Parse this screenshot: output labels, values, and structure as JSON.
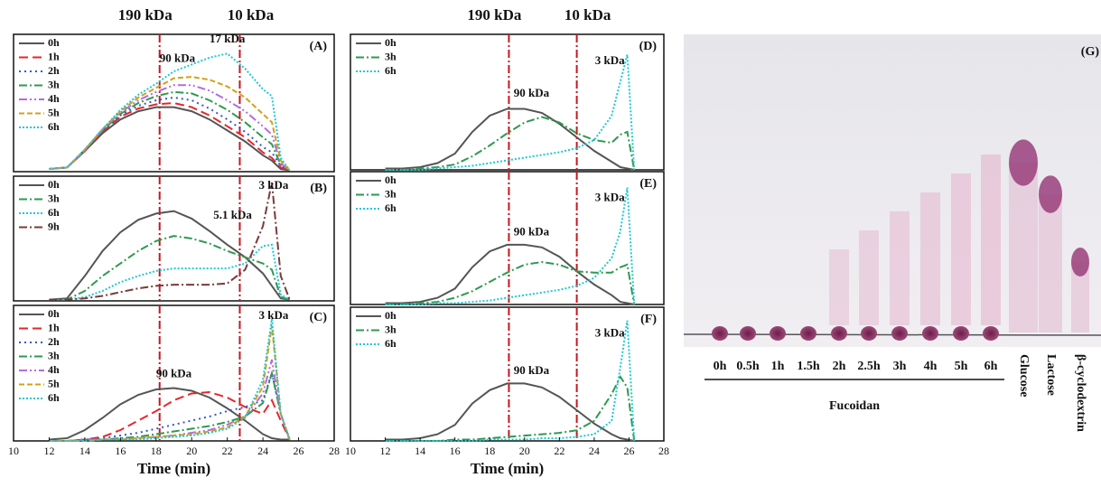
{
  "chart_data": [
    {
      "type": "line",
      "panel_label": "(A)",
      "xlim": [
        10,
        28
      ],
      "ylim": [
        0,
        100
      ],
      "vlines": [
        {
          "value": 18.2,
          "label": "190 kDa"
        },
        {
          "value": 22.7,
          "label": "10 kDa"
        }
      ],
      "annotations": [
        {
          "text": "90 kDa",
          "x": 19.2,
          "y": 82
        },
        {
          "text": "17 kDa",
          "x": 22,
          "y": 96
        }
      ],
      "x": [
        12,
        13,
        14,
        15,
        16,
        17,
        18,
        19,
        20,
        21,
        22,
        23,
        24,
        24.5,
        25,
        25.5
      ],
      "series": [
        {
          "name": "0h",
          "color": "#555555",
          "dash": "",
          "values": [
            2,
            3,
            15,
            28,
            38,
            44,
            47,
            47,
            44,
            38,
            30,
            22,
            12,
            8,
            2,
            1
          ]
        },
        {
          "name": "1h",
          "color": "#e8262b",
          "dash": "10 5",
          "values": [
            2,
            3,
            15,
            29,
            40,
            46,
            49,
            50,
            47,
            41,
            33,
            25,
            14,
            10,
            3,
            1
          ]
        },
        {
          "name": "2h",
          "color": "#3558c8",
          "dash": "2 4",
          "values": [
            2,
            3,
            16,
            30,
            41,
            48,
            52,
            54,
            52,
            46,
            38,
            29,
            18,
            14,
            4,
            1
          ]
        },
        {
          "name": "3h",
          "color": "#2e9a50",
          "dash": "9 3 2 3",
          "values": [
            2,
            3,
            16,
            30,
            42,
            50,
            55,
            58,
            57,
            52,
            45,
            36,
            25,
            20,
            5,
            1
          ]
        },
        {
          "name": "4h",
          "color": "#b66ae0",
          "dash": "9 3 2 3 2 3",
          "values": [
            2,
            3,
            16,
            31,
            43,
            52,
            58,
            63,
            63,
            59,
            52,
            44,
            33,
            27,
            6,
            1
          ]
        },
        {
          "name": "5h",
          "color": "#d4a017",
          "dash": "6 3",
          "values": [
            2,
            3,
            16,
            31,
            44,
            54,
            61,
            68,
            69,
            67,
            62,
            54,
            42,
            36,
            8,
            1
          ]
        },
        {
          "name": "6h",
          "color": "#1fc7d4",
          "dash": "2 2",
          "values": [
            2,
            3,
            16,
            31,
            45,
            56,
            64,
            73,
            78,
            83,
            86,
            75,
            60,
            55,
            10,
            1
          ]
        }
      ]
    },
    {
      "type": "line",
      "panel_label": "(B)",
      "xlim": [
        10,
        28
      ],
      "ylim": [
        0,
        100
      ],
      "vlines": [
        18.2,
        22.7
      ],
      "annotations": [
        {
          "text": "5.1 kDa",
          "x": 22.3,
          "y": 68
        },
        {
          "text": "3 kDa",
          "x": 24.6,
          "y": 92
        }
      ],
      "x": [
        12,
        13,
        14,
        15,
        16,
        17,
        18,
        19,
        20,
        21,
        22,
        23,
        24,
        24.5,
        25,
        25.5
      ],
      "series": [
        {
          "name": "0h",
          "color": "#555555",
          "dash": "",
          "values": [
            1,
            2,
            20,
            40,
            55,
            65,
            70,
            72,
            66,
            56,
            45,
            35,
            22,
            12,
            2,
            1
          ]
        },
        {
          "name": "3h",
          "color": "#2e9a50",
          "dash": "9 3 2 3",
          "values": [
            1,
            1,
            8,
            20,
            30,
            40,
            48,
            52,
            50,
            46,
            40,
            35,
            30,
            25,
            3,
            1
          ]
        },
        {
          "name": "6h",
          "color": "#1fc7d4",
          "dash": "2 2",
          "values": [
            1,
            1,
            3,
            8,
            15,
            20,
            24,
            26,
            26,
            26,
            26,
            30,
            44,
            45,
            5,
            1
          ]
        },
        {
          "name": "9h",
          "color": "#7a3a3a",
          "dash": "9 3 2 3",
          "values": [
            1,
            1,
            2,
            4,
            7,
            10,
            12,
            13,
            13,
            13,
            14,
            25,
            60,
            95,
            20,
            1
          ]
        }
      ]
    },
    {
      "type": "line",
      "panel_label": "(C)",
      "xlim": [
        10,
        28
      ],
      "ylim": [
        0,
        100
      ],
      "xticks": [
        10,
        12,
        14,
        16,
        18,
        20,
        22,
        24,
        26,
        28
      ],
      "xlabel": "Time (min)",
      "vlines": [
        18.2,
        22.7
      ],
      "annotations": [
        {
          "text": "90 kDa",
          "x": 19,
          "y": 49
        },
        {
          "text": "3 kDa",
          "x": 24.6,
          "y": 92
        }
      ],
      "x": [
        12,
        13,
        14,
        15,
        16,
        17,
        18,
        19,
        20,
        21,
        22,
        23,
        24,
        24.5,
        25,
        25.5
      ],
      "series": [
        {
          "name": "0h",
          "color": "#555555",
          "dash": "",
          "values": [
            1,
            2,
            8,
            17,
            27,
            34,
            38,
            39,
            37,
            32,
            24,
            15,
            5,
            2,
            1,
            1
          ]
        },
        {
          "name": "1h",
          "color": "#e8262b",
          "dash": "10 5",
          "values": [
            0,
            0,
            1,
            3,
            8,
            15,
            22,
            30,
            35,
            36,
            32,
            25,
            20,
            30,
            15,
            1
          ]
        },
        {
          "name": "2h",
          "color": "#3558c8",
          "dash": "2 4",
          "values": [
            0,
            0,
            1,
            2,
            4,
            6,
            9,
            12,
            15,
            18,
            22,
            25,
            30,
            50,
            20,
            1
          ]
        },
        {
          "name": "3h",
          "color": "#2e9a50",
          "dash": "9 3 2 3",
          "values": [
            0,
            0,
            1,
            1,
            2,
            3,
            5,
            7,
            9,
            11,
            14,
            18,
            28,
            50,
            20,
            1
          ]
        },
        {
          "name": "4h",
          "color": "#b66ae0",
          "dash": "9 3 2 3 2 3",
          "values": [
            0,
            0,
            1,
            1,
            1,
            2,
            3,
            4,
            6,
            8,
            12,
            18,
            35,
            60,
            20,
            1
          ]
        },
        {
          "name": "5h",
          "color": "#d4a017",
          "dash": "6 3",
          "values": [
            0,
            0,
            0,
            1,
            1,
            2,
            3,
            4,
            5,
            7,
            10,
            18,
            40,
            85,
            20,
            1
          ]
        },
        {
          "name": "6h",
          "color": "#1fc7d4",
          "dash": "2 2",
          "values": [
            0,
            0,
            0,
            1,
            1,
            1,
            2,
            3,
            4,
            6,
            9,
            17,
            45,
            90,
            20,
            1
          ]
        }
      ]
    },
    {
      "type": "line",
      "panel_label": "(D)",
      "xlim": [
        10,
        28
      ],
      "ylim": [
        0,
        100
      ],
      "vlines": [
        {
          "value": 19.1,
          "label": "190 kDa"
        },
        {
          "value": 23,
          "label": "10 kDa"
        }
      ],
      "annotations": [
        {
          "text": "90 kDa",
          "x": 20.4,
          "y": 56
        },
        {
          "text": "3 kDa",
          "x": 24.9,
          "y": 80
        }
      ],
      "x": [
        12,
        13,
        14,
        15,
        16,
        17,
        18,
        19,
        20,
        21,
        22,
        23,
        24,
        25,
        25.5,
        25.9,
        26.3
      ],
      "series": [
        {
          "name": "0h",
          "color": "#555555",
          "dash": "",
          "values": [
            1,
            1,
            2,
            5,
            12,
            28,
            40,
            45,
            45,
            42,
            34,
            24,
            14,
            6,
            2,
            1,
            0
          ]
        },
        {
          "name": "3h",
          "color": "#2e9a50",
          "dash": "9 3 2 3",
          "values": [
            0,
            0,
            1,
            2,
            4,
            10,
            18,
            27,
            35,
            39,
            35,
            27,
            22,
            20,
            26,
            28,
            0
          ]
        },
        {
          "name": "6h",
          "color": "#1fc7d4",
          "dash": "2 2",
          "values": [
            0,
            0,
            0,
            1,
            2,
            3,
            5,
            7,
            9,
            11,
            13,
            16,
            22,
            40,
            65,
            85,
            0
          ]
        }
      ]
    },
    {
      "type": "line",
      "panel_label": "(E)",
      "xlim": [
        10,
        28
      ],
      "ylim": [
        0,
        100
      ],
      "vlines": [
        19.1,
        23
      ],
      "annotations": [
        {
          "text": "90 kDa",
          "x": 20.4,
          "y": 54
        },
        {
          "text": "3 kDa",
          "x": 24.9,
          "y": 80
        }
      ],
      "x": [
        12,
        13,
        14,
        15,
        16,
        17,
        18,
        19,
        20,
        21,
        22,
        23,
        24,
        25,
        25.5,
        25.9,
        26.3
      ],
      "series": [
        {
          "name": "0h",
          "color": "#555555",
          "dash": "",
          "values": [
            1,
            1,
            2,
            5,
            12,
            28,
            40,
            45,
            45,
            43,
            36,
            25,
            15,
            7,
            2,
            1,
            0
          ]
        },
        {
          "name": "3h",
          "color": "#2e9a50",
          "dash": "9 3 2 3",
          "values": [
            0,
            0,
            1,
            2,
            5,
            10,
            17,
            24,
            30,
            32,
            30,
            25,
            24,
            24,
            28,
            30,
            0
          ]
        },
        {
          "name": "6h",
          "color": "#1fc7d4",
          "dash": "2 2",
          "values": [
            0,
            0,
            0,
            1,
            1,
            2,
            3,
            5,
            7,
            9,
            11,
            14,
            20,
            35,
            55,
            88,
            0
          ]
        }
      ]
    },
    {
      "type": "line",
      "panel_label": "(F)",
      "xlim": [
        10,
        28
      ],
      "ylim": [
        0,
        100
      ],
      "xticks": [
        10,
        12,
        14,
        16,
        18,
        20,
        22,
        24,
        26,
        28
      ],
      "xlabel": "Time (min)",
      "vlines": [
        19.1,
        23
      ],
      "annotations": [
        {
          "text": "90 kDa",
          "x": 20.4,
          "y": 52
        },
        {
          "text": "3 kDa",
          "x": 24.9,
          "y": 80
        }
      ],
      "x": [
        12,
        13,
        14,
        15,
        16,
        17,
        18,
        19,
        20,
        21,
        22,
        23,
        24,
        25,
        25.5,
        25.9,
        26.3
      ],
      "series": [
        {
          "name": "0h",
          "color": "#555555",
          "dash": "",
          "values": [
            1,
            1,
            2,
            5,
            12,
            28,
            38,
            43,
            43,
            40,
            33,
            23,
            13,
            5,
            2,
            1,
            0
          ]
        },
        {
          "name": "3h",
          "color": "#2e9a50",
          "dash": "9 3 2 3",
          "values": [
            0,
            0,
            0,
            0,
            1,
            1,
            2,
            3,
            4,
            5,
            6,
            8,
            15,
            35,
            48,
            40,
            0
          ]
        },
        {
          "name": "6h",
          "color": "#1fc7d4",
          "dash": "2 2",
          "values": [
            0,
            0,
            0,
            0,
            0,
            0,
            1,
            1,
            1,
            2,
            2,
            3,
            5,
            15,
            55,
            90,
            0
          ]
        }
      ]
    }
  ],
  "tlc": {
    "panel_label": "(G)",
    "lanes": [
      "0h",
      "0.5h",
      "1h",
      "1.5h",
      "2h",
      "2.5h",
      "3h",
      "4h",
      "5h",
      "6h"
    ],
    "group": "Fucoidan",
    "standards": [
      "Glucose",
      "Lactose",
      "β-cyclodextrin"
    ]
  }
}
